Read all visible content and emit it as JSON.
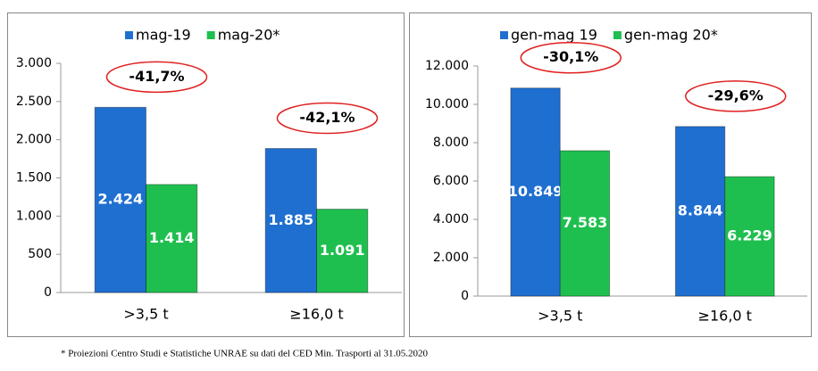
{
  "chart_data": [
    {
      "type": "bar",
      "categories": [
        ">3,5 t",
        "≥16,0 t"
      ],
      "series": [
        {
          "name": "mag-19",
          "color": "#1f6fd0",
          "values": [
            2424,
            1885
          ],
          "value_labels": [
            "2.424",
            "1.885"
          ]
        },
        {
          "name": "mag-20*",
          "color": "#1fbf4f",
          "values": [
            1414,
            1091
          ],
          "value_labels": [
            "1.414",
            "1.091"
          ]
        }
      ],
      "annotations": [
        "-41,7%",
        "-42,1%"
      ],
      "ylim": [
        0,
        3000
      ],
      "yticks": [
        0,
        500,
        {
          "value": 1000,
          "label": "1.000"
        },
        {
          "value": 1500,
          "label": "1.500"
        },
        {
          "value": 2000,
          "label": "2.000"
        },
        {
          "value": 2500,
          "label": "2.500"
        },
        {
          "value": 3000,
          "label": "3.000"
        }
      ],
      "grid": false,
      "legend": "top"
    },
    {
      "type": "bar",
      "categories": [
        ">3,5 t",
        "≥16,0 t"
      ],
      "series": [
        {
          "name": "gen-mag 19",
          "color": "#1f6fd0",
          "values": [
            10849,
            8844
          ],
          "value_labels": [
            "10.849",
            "8.844"
          ]
        },
        {
          "name": "gen-mag 20*",
          "color": "#1fbf4f",
          "values": [
            7583,
            6229
          ],
          "value_labels": [
            "7.583",
            "6.229"
          ]
        }
      ],
      "annotations": [
        "-30,1%",
        "-29,6%"
      ],
      "ylim": [
        0,
        12000
      ],
      "yticks": [
        0,
        {
          "value": 2000,
          "label": "2.000"
        },
        {
          "value": 4000,
          "label": "4.000"
        },
        {
          "value": 6000,
          "label": "6.000"
        },
        {
          "value": 8000,
          "label": "8.000"
        },
        {
          "value": 10000,
          "label": "10.000"
        },
        {
          "value": 12000,
          "label": "12.000"
        }
      ],
      "grid": false,
      "legend": "top"
    }
  ],
  "footnote": "* Proiezioni Centro Studi e Statistiche UNRAE su dati del CED Min. Trasporti al 31.05.2020"
}
